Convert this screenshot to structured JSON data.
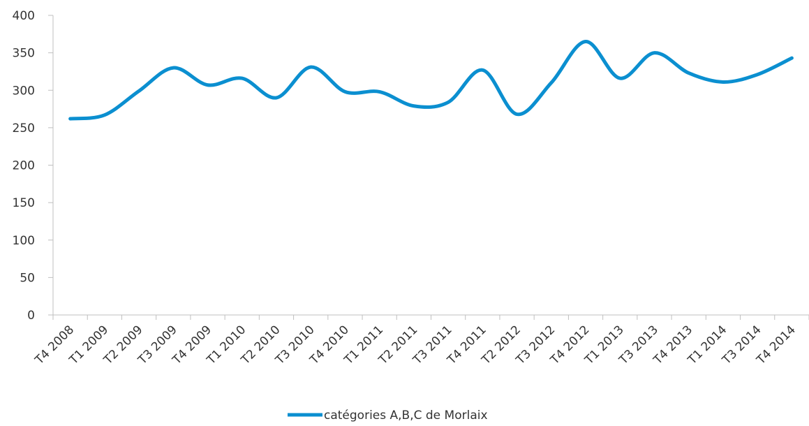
{
  "chart_data": {
    "type": "line",
    "categories": [
      "T4 2008",
      "T1 2009",
      "T2 2009",
      "T3 2009",
      "T4 2009",
      "T1 2010",
      "T2 2010",
      "T3 2010",
      "T4 2010",
      "T1 2011",
      "T2 2011",
      "T3 2011",
      "T4 2011",
      "T2 2012",
      "T3 2012",
      "T4 2012",
      "T1 2013",
      "T3 2013",
      "T4 2013",
      "T1 2014",
      "T3 2014",
      "T4 2014"
    ],
    "series": [
      {
        "name": "catégories A,B,C de Morlaix",
        "color": "#0b8fd0",
        "values": [
          262,
          267,
          299,
          330,
          307,
          316,
          290,
          331,
          298,
          298,
          279,
          284,
          327,
          268,
          310,
          365,
          316,
          350,
          323,
          311,
          321,
          343
        ]
      }
    ],
    "ylim": [
      0,
      400
    ],
    "yticks": [
      0,
      50,
      100,
      150,
      200,
      250,
      300,
      350,
      400
    ],
    "grid": false,
    "legend": "bottom"
  }
}
